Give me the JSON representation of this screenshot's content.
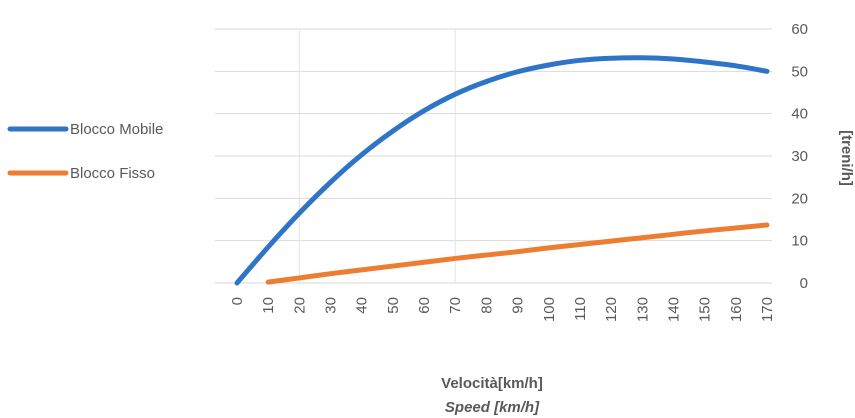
{
  "chart_data": {
    "type": "line",
    "title": "",
    "xlabel": "Velocità[km/h]",
    "xlabel_secondary": "Speed [km/h]",
    "ylabel": "[treni/h]",
    "y_axis_side": "right",
    "x_ticks": [
      0,
      10,
      20,
      30,
      40,
      50,
      60,
      70,
      80,
      90,
      100,
      110,
      120,
      130,
      140,
      150,
      160,
      170
    ],
    "y_ticks": [
      0,
      10,
      20,
      30,
      40,
      50,
      60
    ],
    "xlim": [
      0,
      170
    ],
    "ylim": [
      0,
      60
    ],
    "grid": true,
    "legend_position": "left",
    "series": [
      {
        "name": "Blocco Mobile",
        "color": "#2E75C8",
        "x": [
          0,
          10,
          20,
          30,
          40,
          50,
          60,
          70,
          80,
          90,
          100,
          110,
          120,
          130,
          140,
          150,
          160,
          170
        ],
        "y": [
          0,
          8.5,
          16.5,
          23.8,
          30.3,
          35.9,
          40.7,
          44.6,
          47.6,
          49.9,
          51.5,
          52.6,
          53.1,
          53.2,
          52.9,
          52.2,
          51.3,
          50.0
        ]
      },
      {
        "name": "Blocco Fisso",
        "color": "#ED7D31",
        "x": [
          10,
          20,
          30,
          40,
          50,
          60,
          70,
          80,
          90,
          100,
          110,
          120,
          130,
          140,
          150,
          160,
          170
        ],
        "y": [
          0.2,
          1.2,
          2.2,
          3.1,
          4.0,
          4.9,
          5.8,
          6.6,
          7.4,
          8.3,
          9.1,
          9.9,
          10.7,
          11.5,
          12.3,
          13.0,
          13.7
        ]
      }
    ]
  }
}
